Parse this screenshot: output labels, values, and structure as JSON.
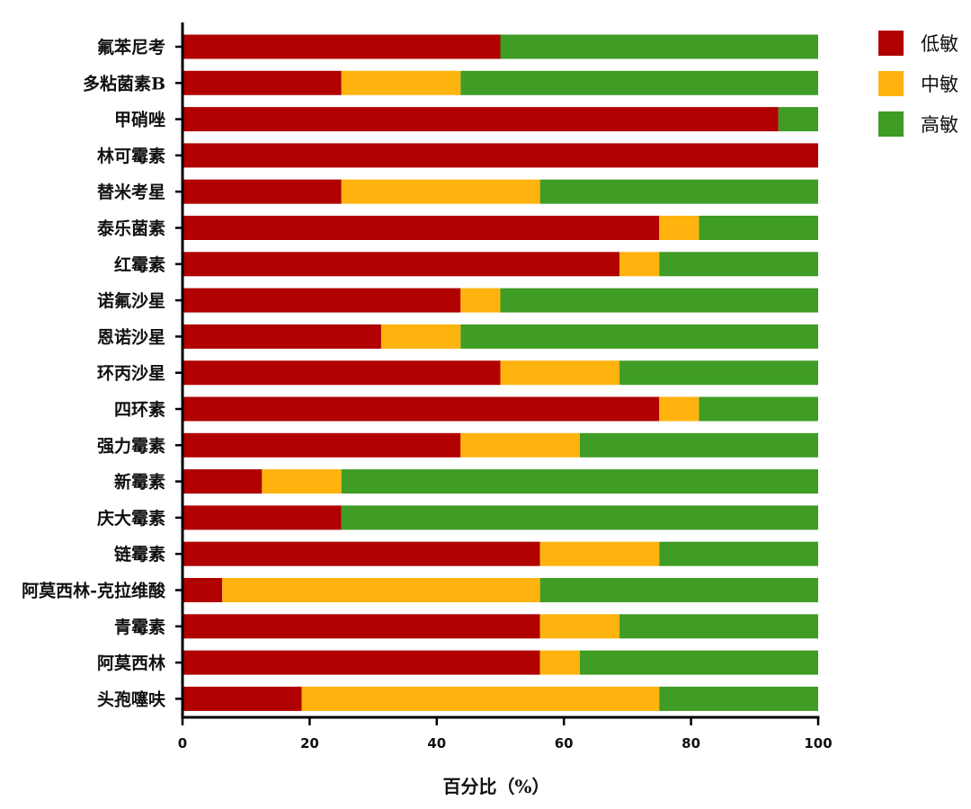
{
  "chart_data": {
    "type": "bar",
    "orientation": "horizontal",
    "stacked": true,
    "title": "",
    "xlabel": "百分比（%）",
    "ylabel": "",
    "xlim": [
      0,
      100
    ],
    "xticks": [
      0,
      20,
      40,
      60,
      80,
      100
    ],
    "grid": false,
    "legend_position": "top-right",
    "categories": [
      "氟苯尼考",
      "多粘菌素B",
      "甲硝唑",
      "林可霉素",
      "替米考星",
      "泰乐菌素",
      "红霉素",
      "诺氟沙星",
      "恩诺沙星",
      "环丙沙星",
      "四环素",
      "强力霉素",
      "新霉素",
      "庆大霉素",
      "链霉素",
      "阿莫西林-克拉维酸",
      "青霉素",
      "阿莫西林",
      "头孢噻呋"
    ],
    "series": [
      {
        "name": "低敏",
        "color": "#b00000",
        "values": [
          50,
          25,
          93.75,
          100,
          25,
          75,
          68.75,
          43.75,
          31.25,
          50,
          75,
          43.75,
          12.5,
          25,
          56.25,
          6.25,
          56.25,
          56.25,
          18.75
        ]
      },
      {
        "name": "中敏",
        "color": "#ffb30f",
        "values": [
          0,
          18.75,
          0,
          0,
          31.25,
          6.25,
          6.25,
          6.25,
          12.5,
          18.75,
          6.25,
          18.75,
          12.5,
          0,
          18.75,
          50,
          12.5,
          6.25,
          56.25
        ]
      },
      {
        "name": "高敏",
        "color": "#3f9c25",
        "values": [
          50,
          56.25,
          6.25,
          0,
          43.75,
          18.75,
          25,
          50,
          56.25,
          31.25,
          18.75,
          37.5,
          75,
          75,
          25,
          43.75,
          31.25,
          37.5,
          25
        ]
      }
    ]
  }
}
